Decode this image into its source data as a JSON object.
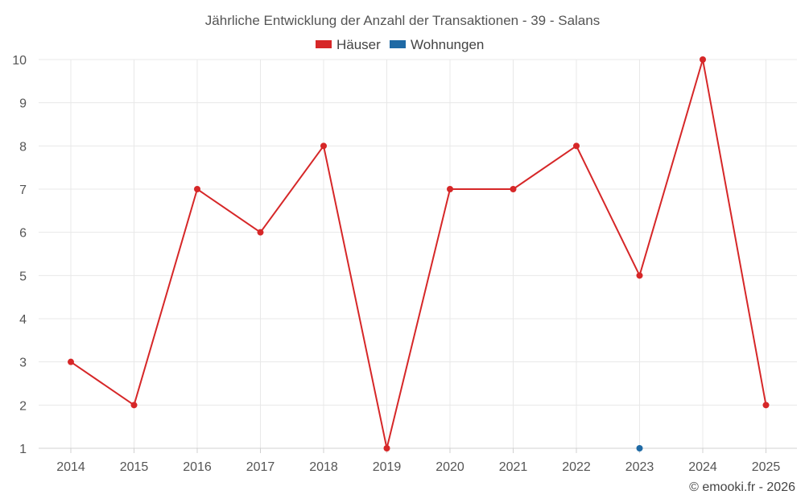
{
  "chart_data": {
    "type": "line",
    "title": "Jährliche Entwicklung der Anzahl der Transaktionen - 39 - Salans",
    "categories": [
      "2014",
      "2015",
      "2016",
      "2017",
      "2018",
      "2019",
      "2020",
      "2021",
      "2022",
      "2023",
      "2024",
      "2025"
    ],
    "series": [
      {
        "name": "Häuser",
        "color": "#d62728",
        "values": [
          3,
          2,
          7,
          6,
          8,
          1,
          7,
          7,
          8,
          5,
          10,
          2
        ]
      },
      {
        "name": "Wohnungen",
        "color": "#1f6aa5",
        "values": [
          null,
          null,
          null,
          null,
          null,
          null,
          null,
          null,
          null,
          1,
          null,
          null
        ]
      }
    ],
    "ylim": [
      1,
      10
    ],
    "yticks": [
      1,
      2,
      3,
      4,
      5,
      6,
      7,
      8,
      9,
      10
    ],
    "grid": true,
    "legend_position": "top-center",
    "xlabel": "",
    "ylabel": ""
  },
  "credit": "© emooki.fr - 2026"
}
